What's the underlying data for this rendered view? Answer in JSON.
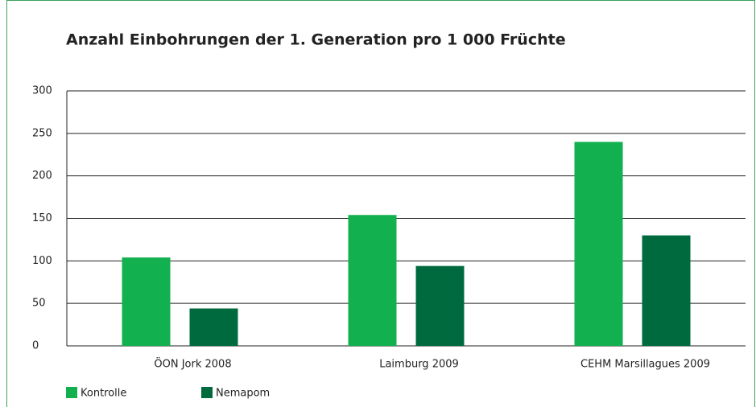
{
  "chart_data": {
    "type": "bar",
    "title": "Anzahl Einbohrungen der 1. Generation pro 1 000 Früchte",
    "categories": [
      "ÖON Jork 2008",
      "Laimburg 2009",
      "CEHM Marsillagues 2009"
    ],
    "series": [
      {
        "name": "Kontrolle",
        "color": "#12b04e",
        "values": [
          104,
          154,
          240
        ]
      },
      {
        "name": "Nemapom",
        "color": "#006a3f",
        "values": [
          44,
          94,
          130
        ]
      }
    ],
    "ylim": [
      0,
      300
    ],
    "yticks": [
      0,
      50,
      100,
      150,
      200,
      250,
      300
    ],
    "grid": true
  }
}
